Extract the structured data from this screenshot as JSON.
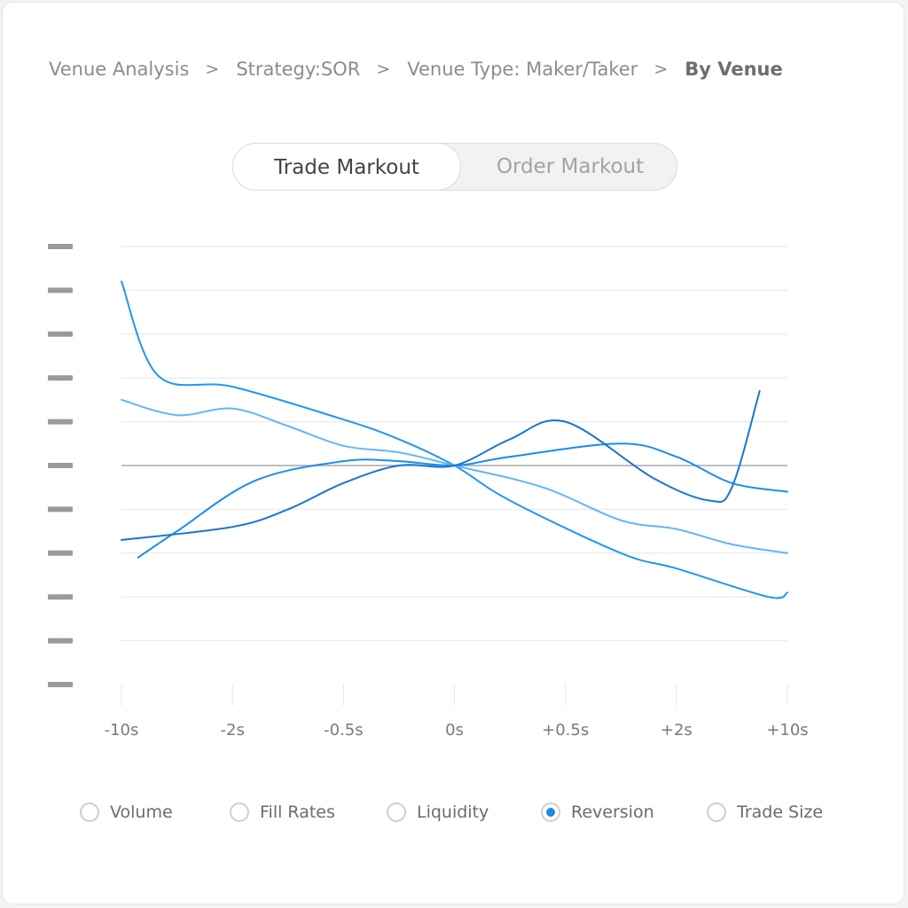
{
  "breadcrumb": {
    "items": [
      "Venue Analysis",
      "Strategy:SOR",
      "Venue Type: Maker/Taker"
    ],
    "current": "By Venue",
    "separator": ">"
  },
  "toggle": {
    "options": [
      "Trade Markout",
      "Order Markout"
    ],
    "selected": "Trade Markout"
  },
  "colors": {
    "series_a": "#2196f3",
    "series_b": "#64b5f6",
    "series_c": "#1a8cf0",
    "series_d": "#1976d2",
    "gridline": "#e6e6e6",
    "zero_line": "#a8a8a8",
    "y_tick_mark": "#9a9a9a",
    "radio_selected": "#1e88e5"
  },
  "chart_data": {
    "type": "line",
    "x": [
      "-10s",
      "-2s",
      "-0.5s",
      "0s",
      "+0.5s",
      "+2s",
      "+10s"
    ],
    "y_tick_count": 11,
    "grid": true,
    "series": [
      {
        "color": "#2196f3",
        "points": [
          [
            0,
            4.2
          ],
          [
            0.33,
            2.05
          ],
          [
            1,
            1.8
          ],
          [
            2,
            1.05
          ],
          [
            2.5,
            0.6
          ],
          [
            3,
            0
          ],
          [
            3.5,
            -0.8
          ],
          [
            4.5,
            -2.0
          ],
          [
            5,
            -2.35
          ],
          [
            5.83,
            -3.0
          ],
          [
            6,
            -2.9
          ]
        ]
      },
      {
        "color": "#64b5f6",
        "points": [
          [
            0,
            1.5
          ],
          [
            0.5,
            1.15
          ],
          [
            1,
            1.3
          ],
          [
            1.5,
            0.9
          ],
          [
            2,
            0.45
          ],
          [
            2.5,
            0.3
          ],
          [
            3,
            0
          ],
          [
            3.8,
            -0.5
          ],
          [
            4.5,
            -1.25
          ],
          [
            5,
            -1.45
          ],
          [
            5.5,
            -1.8
          ],
          [
            6,
            -2.0
          ]
        ]
      },
      {
        "color": "#1a8cf0",
        "points": [
          [
            0.15,
            -2.1
          ],
          [
            0.5,
            -1.5
          ],
          [
            1.2,
            -0.35
          ],
          [
            2,
            0.1
          ],
          [
            2.5,
            0.1
          ],
          [
            3,
            0
          ],
          [
            3.5,
            0.2
          ],
          [
            4.5,
            0.5
          ],
          [
            5,
            0.2
          ],
          [
            5.5,
            -0.4
          ],
          [
            6,
            -0.6
          ]
        ]
      },
      {
        "color": "#1976d2",
        "points": [
          [
            0,
            -1.7
          ],
          [
            1,
            -1.4
          ],
          [
            1.5,
            -1.0
          ],
          [
            2,
            -0.4
          ],
          [
            2.5,
            0.0
          ],
          [
            3,
            0
          ],
          [
            3.5,
            0.6
          ],
          [
            4,
            1.0
          ],
          [
            4.8,
            -0.3
          ],
          [
            5.3,
            -0.8
          ],
          [
            5.5,
            -0.5
          ],
          [
            5.75,
            1.7
          ]
        ]
      }
    ]
  },
  "legend": {
    "options": [
      "Volume",
      "Fill Rates",
      "Liquidity",
      "Reversion",
      "Trade Size"
    ],
    "selected": "Reversion"
  }
}
